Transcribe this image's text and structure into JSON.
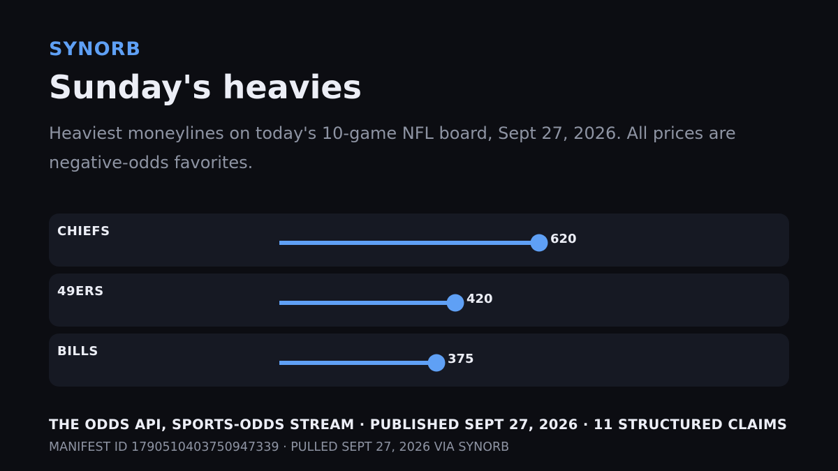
{
  "header": {
    "brand": "SYNORB",
    "title": "Sunday's heavies",
    "subtitle": "Heaviest moneylines on today's 10-game NFL board, Sept 27, 2026. All prices are negative-odds favorites."
  },
  "colors": {
    "background": "#0c0d12",
    "row_background": "#161923",
    "accent": "#5fa0f5",
    "text_primary": "#eceef6",
    "text_secondary": "#8e94a3"
  },
  "chart_data": {
    "type": "bar",
    "orientation": "horizontal",
    "style": "lollipop",
    "categories": [
      "CHIEFS",
      "49ERS",
      "BILLS"
    ],
    "values": [
      620,
      420,
      375
    ],
    "value_labels": [
      "620",
      "420",
      "375"
    ],
    "xlim": [
      0,
      1000
    ],
    "grid": false,
    "legend": "none"
  },
  "footer": {
    "source_line": "THE ODDS API, SPORTS-ODDS STREAM · PUBLISHED SEPT 27, 2026 · 11 STRUCTURED CLAIMS",
    "manifest_line": "MANIFEST ID 1790510403750947339 · PULLED SEPT 27, 2026 VIA SYNORB"
  }
}
